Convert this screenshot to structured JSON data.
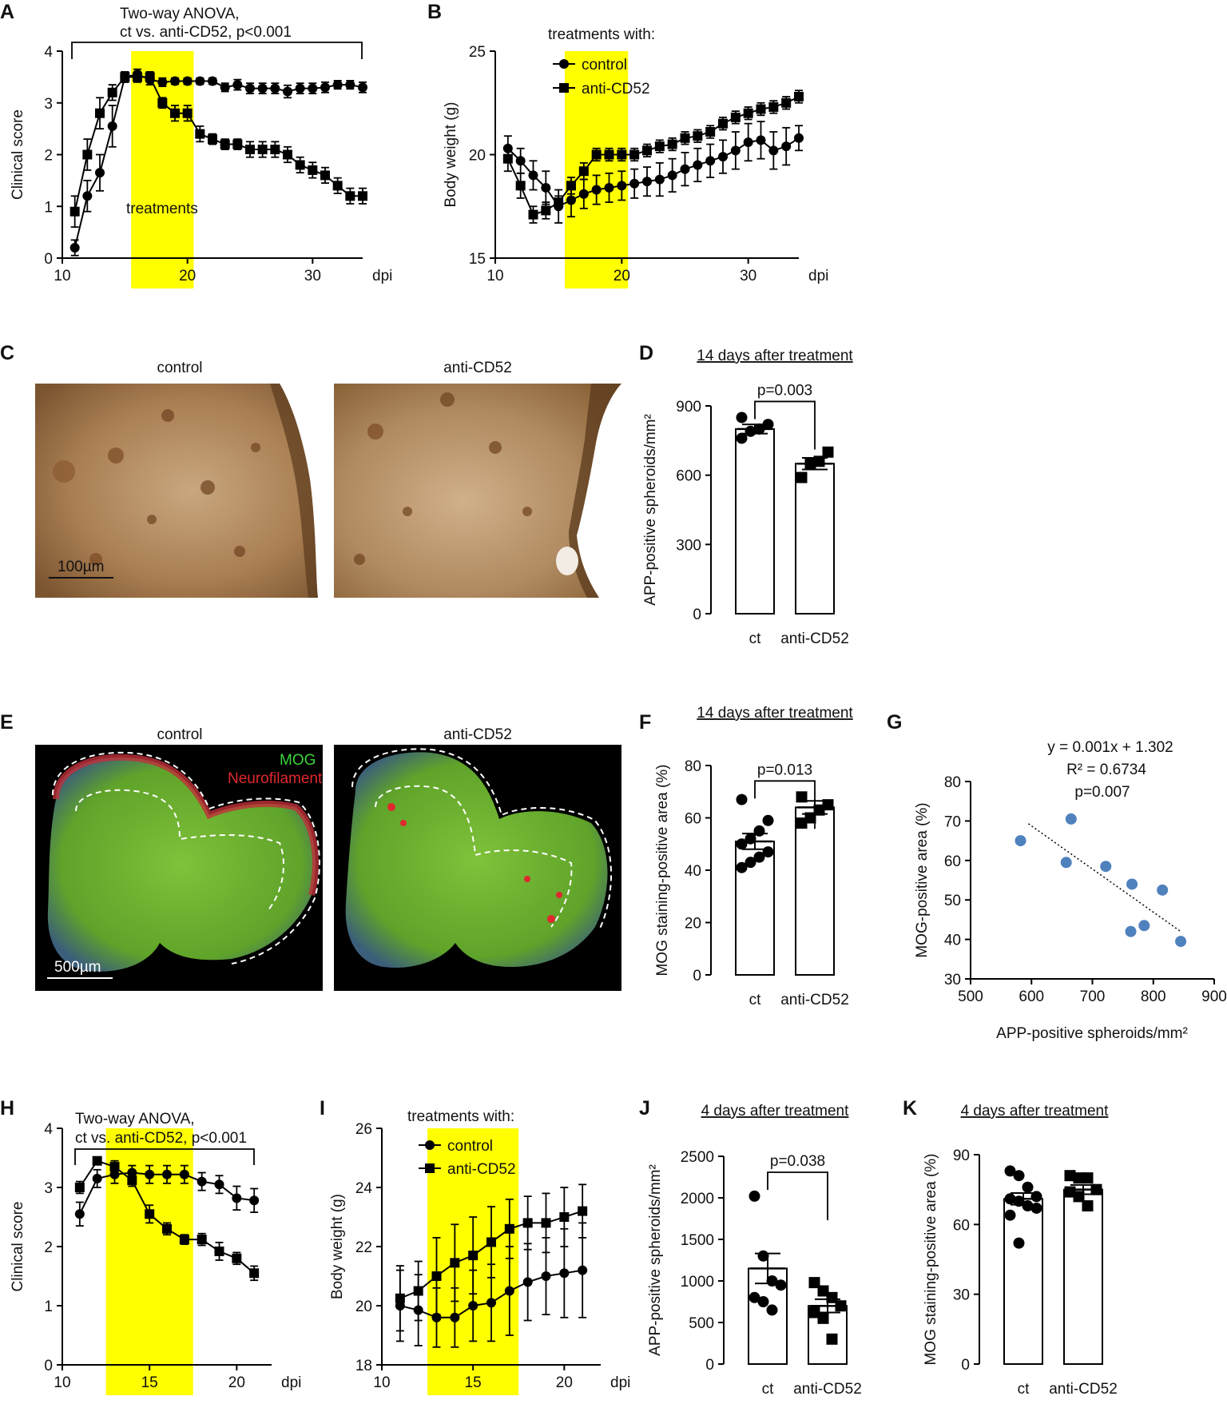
{
  "panel_letters": [
    "A",
    "B",
    "C",
    "D",
    "E",
    "F",
    "G",
    "H",
    "I",
    "J",
    "K"
  ],
  "colors": {
    "treatment_band": "#ffff00",
    "scatter_point": "#4f81bd",
    "axis": "#000000"
  },
  "image_panels": {
    "C": {
      "left_title": "control",
      "right_title": "anti-CD52",
      "scalebar": "100µm"
    },
    "E": {
      "left_title": "control",
      "right_title": "anti-CD52",
      "scalebar": "500µm",
      "legend_mog": "MOG",
      "legend_nf": "Neurofilament"
    }
  },
  "chart_data": [
    {
      "panel": "A",
      "type": "line",
      "title": "Two-way ANOVA,",
      "title2": "ct vs. anti-CD52, p<0.001",
      "xlabel": "dpi",
      "ylabel": "Clinical score",
      "xlim": [
        10,
        34
      ],
      "ylim": [
        0,
        4
      ],
      "xticks": [
        10,
        20,
        30
      ],
      "yticks": [
        0,
        1,
        2,
        3,
        4
      ],
      "band": [
        15.5,
        20.5
      ],
      "band_label": "treatments",
      "series": [
        {
          "name": "control",
          "marker": "circle",
          "x": [
            11,
            12,
            13,
            14,
            15,
            16,
            17,
            18,
            19,
            20,
            21,
            22,
            23,
            24,
            25,
            26,
            27,
            28,
            29,
            30,
            31,
            32,
            33,
            34
          ],
          "y": [
            0.2,
            1.2,
            1.65,
            2.55,
            3.5,
            3.55,
            3.45,
            3.4,
            3.42,
            3.42,
            3.42,
            3.42,
            3.3,
            3.35,
            3.28,
            3.28,
            3.28,
            3.22,
            3.28,
            3.28,
            3.3,
            3.35,
            3.35,
            3.3
          ],
          "err": [
            0.15,
            0.3,
            0.35,
            0.4,
            0.1,
            0.1,
            0.1,
            0.08,
            0.06,
            0.06,
            0.06,
            0.06,
            0.08,
            0.1,
            0.1,
            0.1,
            0.1,
            0.12,
            0.1,
            0.1,
            0.1,
            0.08,
            0.08,
            0.1
          ]
        },
        {
          "name": "anti-CD52",
          "marker": "square",
          "x": [
            11,
            12,
            13,
            14,
            15,
            16,
            17,
            18,
            19,
            20,
            21,
            22,
            23,
            24,
            25,
            26,
            27,
            28,
            29,
            30,
            31,
            32,
            33,
            34
          ],
          "y": [
            0.9,
            2.0,
            2.8,
            3.2,
            3.5,
            3.5,
            3.5,
            3.0,
            2.8,
            2.8,
            2.4,
            2.3,
            2.2,
            2.2,
            2.1,
            2.1,
            2.1,
            2.0,
            1.8,
            1.7,
            1.6,
            1.4,
            1.2,
            1.2
          ],
          "err": [
            0.3,
            0.3,
            0.3,
            0.15,
            0.1,
            0.1,
            0.1,
            0.1,
            0.15,
            0.15,
            0.15,
            0.1,
            0.1,
            0.1,
            0.15,
            0.15,
            0.15,
            0.15,
            0.15,
            0.15,
            0.15,
            0.15,
            0.15,
            0.15
          ]
        }
      ]
    },
    {
      "panel": "B",
      "type": "line",
      "title": "treatments with:",
      "xlabel": "dpi",
      "ylabel": "Body weight (g)",
      "xlim": [
        10,
        34
      ],
      "ylim": [
        15,
        25
      ],
      "xticks": [
        10,
        20,
        30
      ],
      "yticks": [
        15,
        20,
        25
      ],
      "band": [
        15.5,
        20.5
      ],
      "series": [
        {
          "name": "control",
          "marker": "circle",
          "x": [
            11,
            12,
            13,
            14,
            15,
            16,
            17,
            18,
            19,
            20,
            21,
            22,
            23,
            24,
            25,
            26,
            27,
            28,
            29,
            30,
            31,
            32,
            33,
            34
          ],
          "y": [
            20.3,
            19.7,
            19.0,
            18.4,
            17.5,
            17.8,
            18.1,
            18.3,
            18.4,
            18.5,
            18.6,
            18.7,
            18.8,
            19.0,
            19.3,
            19.5,
            19.7,
            19.9,
            20.2,
            20.6,
            20.7,
            20.2,
            20.4,
            20.8
          ],
          "err": [
            0.6,
            0.6,
            0.7,
            0.8,
            0.8,
            0.8,
            0.7,
            0.7,
            0.7,
            0.7,
            0.7,
            0.7,
            0.8,
            0.8,
            0.8,
            0.8,
            0.8,
            0.8,
            0.9,
            0.9,
            0.9,
            0.9,
            0.9,
            0.6
          ]
        },
        {
          "name": "anti-CD52",
          "marker": "square",
          "x": [
            11,
            12,
            13,
            14,
            15,
            16,
            17,
            18,
            19,
            20,
            21,
            22,
            23,
            24,
            25,
            26,
            27,
            28,
            29,
            30,
            31,
            32,
            33,
            34
          ],
          "y": [
            19.8,
            18.5,
            17.1,
            17.3,
            17.7,
            18.5,
            19.2,
            20.0,
            20.0,
            20.0,
            20.0,
            20.2,
            20.4,
            20.5,
            20.8,
            20.9,
            21.1,
            21.5,
            21.8,
            22.0,
            22.2,
            22.3,
            22.5,
            22.8
          ],
          "err": [
            0.6,
            0.6,
            0.4,
            0.4,
            0.3,
            0.4,
            0.4,
            0.3,
            0.3,
            0.3,
            0.3,
            0.3,
            0.3,
            0.3,
            0.3,
            0.3,
            0.3,
            0.3,
            0.3,
            0.3,
            0.3,
            0.3,
            0.3,
            0.3
          ]
        }
      ]
    },
    {
      "panel": "D",
      "type": "bar",
      "header": "14 days after treatment",
      "ylabel": "APP-positive spheroids/mm²",
      "categories": [
        "ct",
        "anti-CD52"
      ],
      "means": [
        800,
        650
      ],
      "sem": [
        20,
        25
      ],
      "points": [
        [
          760,
          790,
          800,
          820,
          850
        ],
        [
          590,
          650,
          660,
          700
        ]
      ],
      "pvalue": "p=0.003",
      "ylim": [
        0,
        900
      ],
      "yticks": [
        0,
        300,
        600,
        900
      ],
      "markers": [
        "circle",
        "square"
      ]
    },
    {
      "panel": "F",
      "type": "bar",
      "header": "14 days after treatment",
      "ylabel": "MOG staining-positive area (%)",
      "categories": [
        "ct",
        "anti-CD52"
      ],
      "means": [
        51,
        64
      ],
      "sem": [
        3,
        2.5
      ],
      "points": [
        [
          41,
          43,
          45,
          47,
          50,
          52,
          55,
          59,
          67
        ],
        [
          58,
          60,
          63,
          65,
          68
        ]
      ],
      "pvalue": "p=0.013",
      "ylim": [
        0,
        80
      ],
      "yticks": [
        0,
        20,
        40,
        60,
        80
      ],
      "markers": [
        "circle",
        "square"
      ]
    },
    {
      "panel": "G",
      "type": "scatter",
      "eq1": "y = 0.001x + 1.302",
      "eq2": "R² = 0.6734",
      "eq3": "p=0.007",
      "xlabel": "APP-positive spheroids/mm²",
      "ylabel": "MOG-positive area (%)",
      "xlim": [
        500,
        900
      ],
      "ylim": [
        30,
        80
      ],
      "xticks": [
        500,
        600,
        700,
        800,
        900
      ],
      "yticks": [
        30,
        40,
        50,
        60,
        70,
        80
      ],
      "x": [
        582,
        657,
        665,
        722,
        765,
        785,
        815,
        845,
        763
      ],
      "y": [
        65,
        59.5,
        70.5,
        58.5,
        54,
        43.5,
        52.5,
        39.5,
        42
      ],
      "trend_x": [
        595,
        845
      ],
      "trend_y": [
        69.3,
        42
      ]
    },
    {
      "panel": "H",
      "type": "line",
      "title": "Two-way ANOVA,",
      "title2": "ct vs. anti-CD52, p<0.001",
      "xlabel": "dpi",
      "ylabel": "Clinical score",
      "xlim": [
        10,
        22
      ],
      "ylim": [
        0,
        4
      ],
      "xticks": [
        10,
        15,
        20
      ],
      "yticks": [
        0,
        1,
        2,
        3,
        4
      ],
      "band": [
        12.5,
        17.5
      ],
      "series": [
        {
          "name": "control",
          "marker": "circle",
          "x": [
            11,
            12,
            13,
            14,
            15,
            16,
            17,
            18,
            19,
            20,
            21
          ],
          "y": [
            2.55,
            3.15,
            3.22,
            3.25,
            3.22,
            3.22,
            3.22,
            3.1,
            3.05,
            2.82,
            2.78
          ],
          "err": [
            0.2,
            0.15,
            0.15,
            0.12,
            0.15,
            0.15,
            0.15,
            0.15,
            0.15,
            0.2,
            0.2
          ]
        },
        {
          "name": "anti-CD52",
          "marker": "square",
          "x": [
            11,
            12,
            13,
            14,
            15,
            16,
            17,
            18,
            19,
            20,
            21
          ],
          "y": [
            3.0,
            3.45,
            3.35,
            3.12,
            2.55,
            2.3,
            2.12,
            2.12,
            1.92,
            1.8,
            1.55
          ],
          "err": [
            0.1,
            0.05,
            0.1,
            0.1,
            0.15,
            0.1,
            0.08,
            0.1,
            0.15,
            0.1,
            0.12
          ]
        }
      ]
    },
    {
      "panel": "I",
      "type": "line",
      "title": "treatments with:",
      "xlabel": "dpi",
      "ylabel": "Body weight (g)",
      "xlim": [
        10,
        22
      ],
      "ylim": [
        18,
        26
      ],
      "xticks": [
        10,
        15,
        20
      ],
      "yticks": [
        18,
        20,
        22,
        24,
        26
      ],
      "band": [
        12.5,
        17.5
      ],
      "series": [
        {
          "name": "control",
          "marker": "circle",
          "x": [
            11,
            12,
            13,
            14,
            15,
            16,
            17,
            18,
            19,
            20,
            21
          ],
          "y": [
            20.0,
            19.85,
            19.6,
            19.6,
            20.0,
            20.1,
            20.5,
            20.8,
            21.0,
            21.1,
            21.2
          ],
          "err": [
            1.2,
            1.2,
            1.0,
            1.0,
            1.2,
            1.3,
            1.5,
            1.3,
            1.3,
            1.5,
            1.6
          ]
        },
        {
          "name": "anti-CD52",
          "marker": "square",
          "x": [
            11,
            12,
            13,
            14,
            15,
            16,
            17,
            18,
            19,
            20,
            21
          ],
          "y": [
            20.25,
            20.5,
            21.0,
            21.45,
            21.7,
            22.15,
            22.6,
            22.8,
            22.8,
            23.0,
            23.2
          ],
          "err": [
            1.1,
            1.0,
            1.3,
            1.3,
            1.3,
            1.2,
            1.0,
            0.9,
            1.0,
            1.0,
            0.9
          ]
        }
      ]
    },
    {
      "panel": "J",
      "type": "bar",
      "header": "4 days after treatment",
      "ylabel": "APP-positive spheroids/mm²",
      "categories": [
        "ct",
        "anti-CD52"
      ],
      "means": [
        1150,
        700
      ],
      "sem": [
        180,
        80
      ],
      "points": [
        [
          2020,
          1300,
          1000,
          950,
          800,
          750,
          650
        ],
        [
          980,
          880,
          800,
          700,
          620,
          550,
          300
        ]
      ],
      "pvalue": "p=0.038",
      "ylim": [
        0,
        2500
      ],
      "yticks": [
        0,
        500,
        1000,
        1500,
        2000,
        2500
      ],
      "markers": [
        "circle",
        "square"
      ]
    },
    {
      "panel": "K",
      "type": "bar",
      "header": "4 days after treatment",
      "ylabel": "MOG staining-positive area (%)",
      "categories": [
        "ct",
        "anti-CD52"
      ],
      "means": [
        71,
        75
      ],
      "sem": [
        2.5,
        2
      ],
      "points": [
        [
          83,
          81,
          76,
          72,
          71,
          70,
          68,
          67,
          64,
          52
        ],
        [
          81,
          80,
          80,
          75,
          74,
          72,
          68
        ]
      ],
      "ylim": [
        0,
        90
      ],
      "yticks": [
        0,
        30,
        60,
        90
      ],
      "markers": [
        "circle",
        "square"
      ]
    }
  ]
}
